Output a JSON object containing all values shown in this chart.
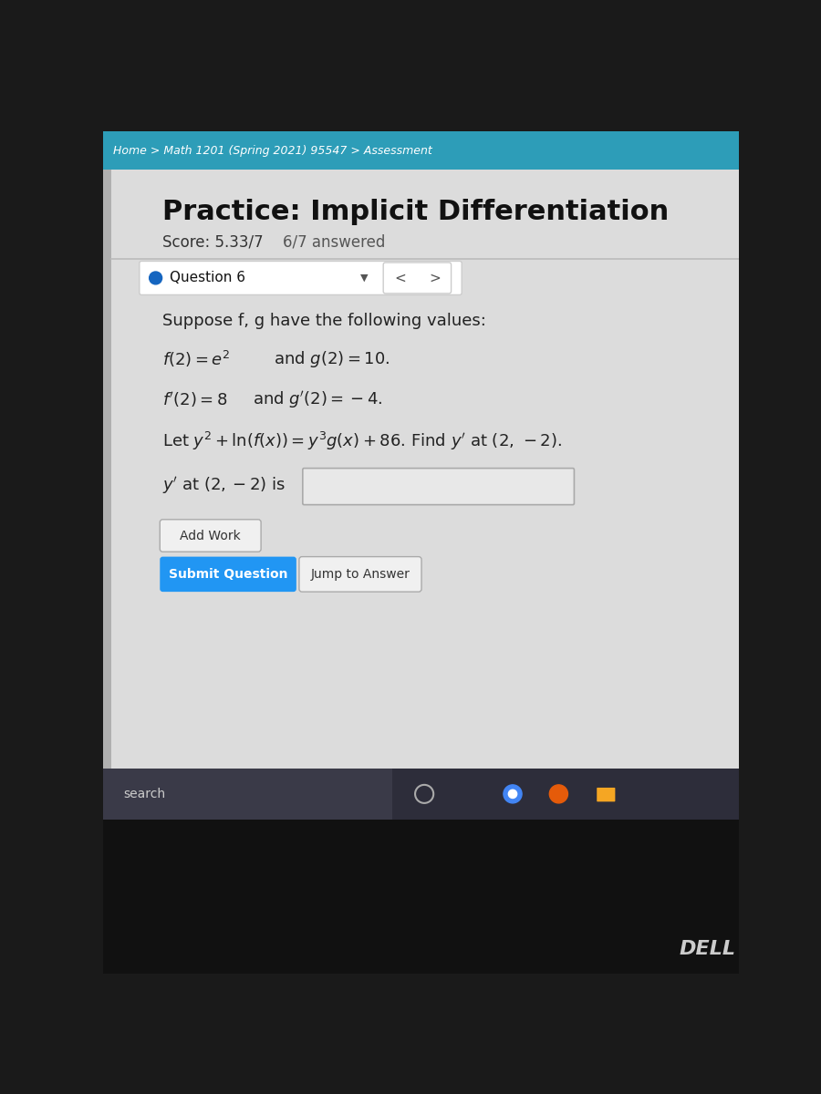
{
  "breadcrumb_text": "Home > Math 1201 (Spring 2021) 95547 > Assessment",
  "breadcrumb_bg": "#2d9db8",
  "breadcrumb_text_color": "#ffffff",
  "title": "Practice: Implicit Differentiation",
  "score_text": "Score: 5.33/7",
  "answered_text": "6/7 answered",
  "question_label": "Question 6",
  "suppose_text": "Suppose f, g have the following values:",
  "add_work_btn": "Add Work",
  "submit_btn": "Submit Question",
  "jump_btn": "Jump to Answer",
  "search_text": "search",
  "dell_text": "DELL",
  "btn_submit_bg": "#2196f3",
  "btn_submit_text": "#ffffff",
  "title_fontsize": 22,
  "body_fontsize": 13,
  "score_fontsize": 12
}
